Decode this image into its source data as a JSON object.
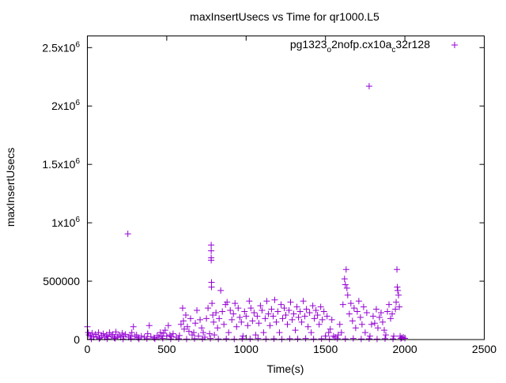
{
  "chart_data": {
    "type": "scatter",
    "title": "maxInsertUsecs vs Time for qr1000.L5",
    "xlabel": "Time(s)",
    "ylabel": "maxInsertUsecs",
    "xlim": [
      0,
      2500
    ],
    "ylim": [
      0,
      2600000
    ],
    "grid": false,
    "legend_position": "top-right",
    "x_ticks": [
      {
        "value": 0,
        "label": "0"
      },
      {
        "value": 500,
        "label": "500"
      },
      {
        "value": 1000,
        "label": "1000"
      },
      {
        "value": 1500,
        "label": "1500"
      },
      {
        "value": 2000,
        "label": "2000"
      },
      {
        "value": 2500,
        "label": "2500"
      }
    ],
    "y_ticks": [
      {
        "value": 0,
        "label": "0",
        "exp": ""
      },
      {
        "value": 500000,
        "label": "500000",
        "exp": ""
      },
      {
        "value": 1000000,
        "label": "1x10",
        "exp": "6"
      },
      {
        "value": 1500000,
        "label": "1.5x10",
        "exp": "6"
      },
      {
        "value": 2000000,
        "label": "2x10",
        "exp": "6"
      },
      {
        "value": 2500000,
        "label": "2.5x10",
        "exp": "6"
      }
    ],
    "series": [
      {
        "name": "pg1323_o2nofp.cx10a_c32r128",
        "name_parts": [
          {
            "text": "pg1323",
            "sub": "o"
          },
          {
            "text": "2nofp.cx10a",
            "sub": "c"
          },
          {
            "text": "32r128",
            "sub": ""
          }
        ],
        "color": "#9400d3",
        "marker": "+",
        "points": [
          [
            0,
            110000
          ],
          [
            5,
            60000
          ],
          [
            10,
            40000
          ],
          [
            20,
            30000
          ],
          [
            30,
            55000
          ],
          [
            40,
            20000
          ],
          [
            50,
            45000
          ],
          [
            60,
            25000
          ],
          [
            70,
            60000
          ],
          [
            80,
            15000
          ],
          [
            90,
            35000
          ],
          [
            100,
            50000
          ],
          [
            110,
            20000
          ],
          [
            120,
            40000
          ],
          [
            130,
            25000
          ],
          [
            140,
            60000
          ],
          [
            150,
            30000
          ],
          [
            160,
            45000
          ],
          [
            170,
            15000
          ],
          [
            180,
            65000
          ],
          [
            190,
            25000
          ],
          [
            200,
            40000
          ],
          [
            210,
            20000
          ],
          [
            220,
            55000
          ],
          [
            230,
            30000
          ],
          [
            240,
            45000
          ],
          [
            255,
            905000
          ],
          [
            260,
            20000
          ],
          [
            270,
            35000
          ],
          [
            280,
            60000
          ],
          [
            290,
            110000
          ],
          [
            300,
            25000
          ],
          [
            310,
            40000
          ],
          [
            320,
            15000
          ],
          [
            340,
            30000
          ],
          [
            360,
            20000
          ],
          [
            380,
            50000
          ],
          [
            390,
            120000
          ],
          [
            400,
            25000
          ],
          [
            420,
            15000
          ],
          [
            440,
            35000
          ],
          [
            450,
            20000
          ],
          [
            460,
            60000
          ],
          [
            470,
            30000
          ],
          [
            480,
            55000
          ],
          [
            490,
            80000
          ],
          [
            500,
            30000
          ],
          [
            510,
            120000
          ],
          [
            520,
            40000
          ],
          [
            530,
            25000
          ],
          [
            540,
            50000
          ],
          [
            560,
            20000
          ],
          [
            580,
            35000
          ],
          [
            590,
            130000
          ],
          [
            600,
            270000
          ],
          [
            605,
            160000
          ],
          [
            610,
            90000
          ],
          [
            620,
            210000
          ],
          [
            630,
            110000
          ],
          [
            640,
            70000
          ],
          [
            650,
            180000
          ],
          [
            660,
            40000
          ],
          [
            670,
            60000
          ],
          [
            680,
            140000
          ],
          [
            690,
            250000
          ],
          [
            700,
            30000
          ],
          [
            710,
            170000
          ],
          [
            720,
            100000
          ],
          [
            730,
            60000
          ],
          [
            740,
            20000
          ],
          [
            750,
            180000
          ],
          [
            760,
            270000
          ],
          [
            770,
            50000
          ],
          [
            780,
            810000
          ],
          [
            780,
            760000
          ],
          [
            780,
            700000
          ],
          [
            780,
            680000
          ],
          [
            782,
            490000
          ],
          [
            782,
            450000
          ],
          [
            785,
            310000
          ],
          [
            790,
            210000
          ],
          [
            795,
            150000
          ],
          [
            800,
            40000
          ],
          [
            810,
            230000
          ],
          [
            820,
            100000
          ],
          [
            830,
            180000
          ],
          [
            840,
            420000
          ],
          [
            850,
            240000
          ],
          [
            860,
            130000
          ],
          [
            870,
            300000
          ],
          [
            880,
            320000
          ],
          [
            890,
            60000
          ],
          [
            900,
            250000
          ],
          [
            910,
            170000
          ],
          [
            920,
            220000
          ],
          [
            930,
            310000
          ],
          [
            940,
            110000
          ],
          [
            950,
            270000
          ],
          [
            960,
            190000
          ],
          [
            970,
            150000
          ],
          [
            980,
            30000
          ],
          [
            990,
            240000
          ],
          [
            1000,
            200000
          ],
          [
            1010,
            120000
          ],
          [
            1020,
            330000
          ],
          [
            1030,
            270000
          ],
          [
            1040,
            160000
          ],
          [
            1050,
            230000
          ],
          [
            1060,
            40000
          ],
          [
            1070,
            200000
          ],
          [
            1080,
            140000
          ],
          [
            1090,
            290000
          ],
          [
            1100,
            250000
          ],
          [
            1110,
            60000
          ],
          [
            1120,
            180000
          ],
          [
            1130,
            330000
          ],
          [
            1140,
            220000
          ],
          [
            1150,
            120000
          ],
          [
            1160,
            260000
          ],
          [
            1170,
            200000
          ],
          [
            1180,
            340000
          ],
          [
            1190,
            150000
          ],
          [
            1200,
            240000
          ],
          [
            1210,
            60000
          ],
          [
            1220,
            300000
          ],
          [
            1230,
            180000
          ],
          [
            1240,
            270000
          ],
          [
            1250,
            210000
          ],
          [
            1260,
            130000
          ],
          [
            1270,
            250000
          ],
          [
            1280,
            320000
          ],
          [
            1290,
            170000
          ],
          [
            1300,
            220000
          ],
          [
            1310,
            80000
          ],
          [
            1320,
            280000
          ],
          [
            1330,
            190000
          ],
          [
            1340,
            240000
          ],
          [
            1350,
            150000
          ],
          [
            1360,
            330000
          ],
          [
            1370,
            200000
          ],
          [
            1380,
            260000
          ],
          [
            1390,
            110000
          ],
          [
            1400,
            230000
          ],
          [
            1410,
            60000
          ],
          [
            1420,
            290000
          ],
          [
            1430,
            180000
          ],
          [
            1440,
            250000
          ],
          [
            1450,
            210000
          ],
          [
            1460,
            130000
          ],
          [
            1470,
            280000
          ],
          [
            1480,
            170000
          ],
          [
            1490,
            240000
          ],
          [
            1500,
            30000
          ],
          [
            1510,
            200000
          ],
          [
            1520,
            60000
          ],
          [
            1530,
            90000
          ],
          [
            1540,
            170000
          ],
          [
            1550,
            30000
          ],
          [
            1560,
            20000
          ],
          [
            1580,
            40000
          ],
          [
            1590,
            130000
          ],
          [
            1600,
            60000
          ],
          [
            1610,
            300000
          ],
          [
            1620,
            520000
          ],
          [
            1625,
            470000
          ],
          [
            1630,
            600000
          ],
          [
            1635,
            440000
          ],
          [
            1640,
            380000
          ],
          [
            1650,
            220000
          ],
          [
            1660,
            310000
          ],
          [
            1670,
            160000
          ],
          [
            1680,
            270000
          ],
          [
            1690,
            100000
          ],
          [
            1700,
            240000
          ],
          [
            1710,
            330000
          ],
          [
            1720,
            190000
          ],
          [
            1730,
            130000
          ],
          [
            1740,
            280000
          ],
          [
            1750,
            60000
          ],
          [
            1760,
            230000
          ],
          [
            1775,
            2170000
          ],
          [
            1780,
            30000
          ],
          [
            1790,
            130000
          ],
          [
            1800,
            200000
          ],
          [
            1810,
            140000
          ],
          [
            1820,
            260000
          ],
          [
            1830,
            100000
          ],
          [
            1840,
            190000
          ],
          [
            1850,
            230000
          ],
          [
            1860,
            150000
          ],
          [
            1870,
            80000
          ],
          [
            1880,
            40000
          ],
          [
            1890,
            240000
          ],
          [
            1900,
            300000
          ],
          [
            1910,
            180000
          ],
          [
            1920,
            220000
          ],
          [
            1930,
            30000
          ],
          [
            1940,
            260000
          ],
          [
            1945,
            320000
          ],
          [
            1950,
            600000
          ],
          [
            1952,
            450000
          ],
          [
            1955,
            420000
          ],
          [
            1960,
            380000
          ],
          [
            1965,
            280000
          ],
          [
            1970,
            30000
          ],
          [
            1980,
            15000
          ],
          [
            1990,
            20000
          ],
          [
            2000,
            10000
          ],
          [
            25,
            5000
          ],
          [
            75,
            8000
          ],
          [
            125,
            6000
          ],
          [
            175,
            9000
          ],
          [
            225,
            4000
          ],
          [
            275,
            7000
          ],
          [
            325,
            5000
          ],
          [
            375,
            8000
          ],
          [
            425,
            6000
          ],
          [
            475,
            9000
          ],
          [
            525,
            5000
          ],
          [
            575,
            7000
          ],
          [
            625,
            4000
          ],
          [
            675,
            8000
          ],
          [
            725,
            6000
          ],
          [
            775,
            9000
          ],
          [
            825,
            5000
          ],
          [
            875,
            7000
          ],
          [
            925,
            4000
          ],
          [
            975,
            8000
          ],
          [
            1025,
            6000
          ],
          [
            1075,
            9000
          ],
          [
            1125,
            5000
          ],
          [
            1175,
            7000
          ],
          [
            1225,
            4000
          ],
          [
            1275,
            8000
          ],
          [
            1325,
            6000
          ],
          [
            1375,
            9000
          ],
          [
            1425,
            5000
          ],
          [
            1475,
            7000
          ],
          [
            1525,
            4000
          ],
          [
            1575,
            8000
          ],
          [
            1625,
            6000
          ],
          [
            1675,
            9000
          ],
          [
            1725,
            5000
          ],
          [
            1775,
            7000
          ],
          [
            1825,
            4000
          ],
          [
            1875,
            8000
          ],
          [
            1925,
            6000
          ],
          [
            1975,
            9000
          ]
        ]
      }
    ]
  }
}
